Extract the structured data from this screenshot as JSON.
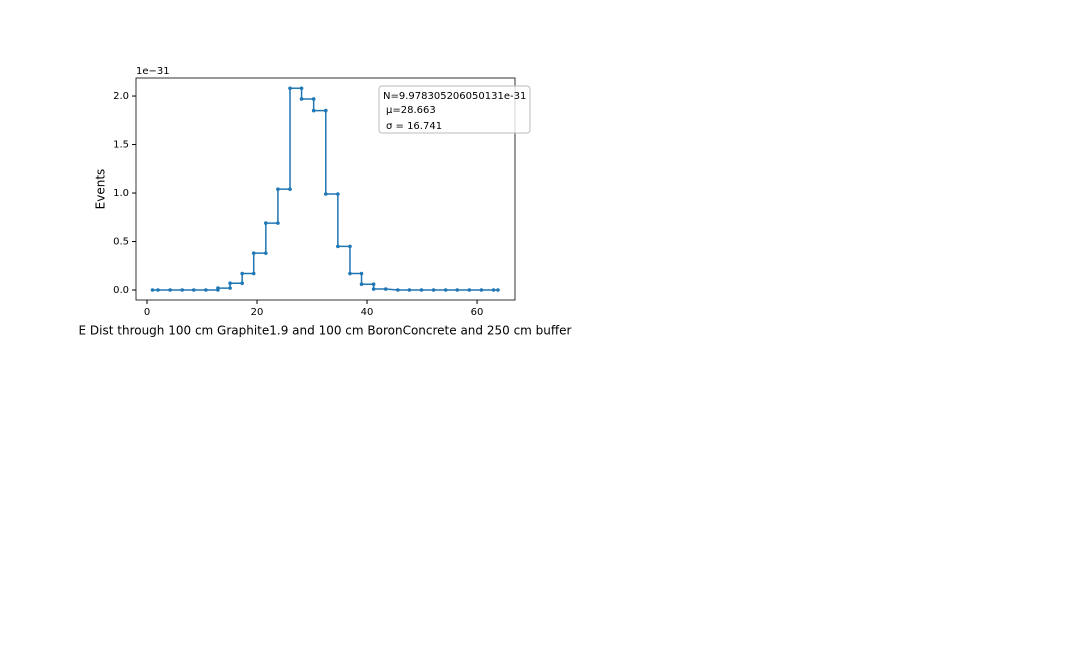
{
  "chart_data": {
    "type": "line",
    "xlabel": "E Dist through 100 cm Graphite1.9 and 100 cm BoronConcrete and 250 cm buffer",
    "ylabel": "Events",
    "y_offset_label": "1e−31",
    "annotations": [
      "N=9.978305206050131e-31",
      "μ=28.663",
      "σ = 16.741"
    ],
    "x": [
      1.0,
      2.0,
      4.2,
      6.4,
      8.5,
      10.7,
      12.9,
      12.9,
      15.1,
      15.1,
      17.3,
      17.3,
      19.4,
      19.4,
      21.6,
      21.6,
      23.8,
      23.8,
      26.0,
      26.0,
      28.1,
      28.1,
      30.3,
      30.3,
      32.5,
      32.5,
      34.7,
      34.7,
      36.9,
      36.9,
      39.0,
      39.0,
      41.2,
      41.2,
      43.4,
      45.6,
      47.7,
      49.9,
      52.1,
      54.3,
      56.4,
      58.6,
      60.8,
      63.0,
      63.8
    ],
    "series": [
      {
        "color": "#1f77b4",
        "values": [
          0,
          0,
          0,
          0,
          0,
          0,
          0,
          0.02,
          0.02,
          0.07,
          0.07,
          0.17,
          0.17,
          0.38,
          0.38,
          0.69,
          0.69,
          1.04,
          1.04,
          2.08,
          2.08,
          1.97,
          1.97,
          1.85,
          1.85,
          0.99,
          0.99,
          0.45,
          0.45,
          0.17,
          0.17,
          0.06,
          0.06,
          0.01,
          0.01,
          0,
          0,
          0,
          0,
          0,
          0,
          0,
          0,
          0,
          0
        ]
      }
    ],
    "xlim": [
      -2.0,
      66.9
    ],
    "ylim": [
      -0.103,
      2.186
    ],
    "xticks": [
      0,
      20,
      40,
      60
    ],
    "yticks": [
      {
        "value": 0,
        "label": "0.0"
      },
      {
        "value": 0.5,
        "label": "0.5"
      },
      {
        "value": 1,
        "label": "1.0"
      },
      {
        "value": 1.5,
        "label": "1.5"
      },
      {
        "value": 2,
        "label": "2.0"
      }
    ]
  }
}
